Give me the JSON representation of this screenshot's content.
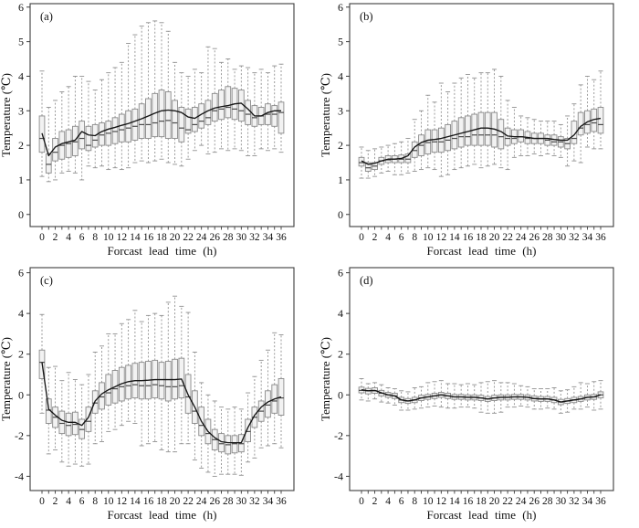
{
  "figure": {
    "title": "",
    "colors": {
      "background": "#ffffff",
      "axis": "#3c3c3c",
      "tick_text": "#111111",
      "box_fill": "#f2f2f2",
      "box_stroke": "#8a8a8a",
      "whisker": "#909090",
      "median": "#4a4a4a",
      "mean_line": "#151515"
    }
  },
  "chart_data": [
    {
      "type": "boxplot",
      "panel_label": "(a)",
      "xlabel": "Forcast lead time (h)",
      "ylabel": "Temperature (℃)",
      "x": [
        0,
        1,
        2,
        3,
        4,
        5,
        6,
        7,
        8,
        9,
        10,
        11,
        12,
        13,
        14,
        15,
        16,
        17,
        18,
        19,
        20,
        21,
        22,
        23,
        24,
        25,
        26,
        27,
        28,
        29,
        30,
        31,
        32,
        33,
        34,
        35,
        36
      ],
      "xtick_label_step": 2,
      "ylim": [
        -0.35,
        6.1
      ],
      "yticks": [
        0,
        1,
        2,
        3,
        4,
        5,
        6
      ],
      "grid": false,
      "series": {
        "low": [
          1.1,
          0.95,
          1.0,
          1.2,
          1.25,
          1.2,
          1.0,
          1.4,
          1.35,
          1.4,
          1.3,
          1.35,
          1.3,
          1.35,
          1.5,
          1.55,
          1.5,
          1.55,
          1.6,
          1.5,
          1.45,
          1.4,
          1.6,
          1.85,
          2.0,
          1.75,
          1.8,
          1.9,
          1.85,
          1.9,
          1.85,
          1.7,
          1.7,
          1.9,
          1.85,
          1.9,
          1.8
        ],
        "q1": [
          1.8,
          1.2,
          1.55,
          1.6,
          1.65,
          1.7,
          1.9,
          1.85,
          1.95,
          2.0,
          2.0,
          2.05,
          2.1,
          2.1,
          2.15,
          2.2,
          2.2,
          2.25,
          2.25,
          2.2,
          2.2,
          2.1,
          2.35,
          2.4,
          2.5,
          2.6,
          2.7,
          2.75,
          2.8,
          2.75,
          2.7,
          2.6,
          2.55,
          2.6,
          2.6,
          2.55,
          2.35
        ],
        "median": [
          2.2,
          1.45,
          1.8,
          2.0,
          2.05,
          2.1,
          2.2,
          2.0,
          2.15,
          2.3,
          2.35,
          2.4,
          2.45,
          2.5,
          2.55,
          2.6,
          2.6,
          2.65,
          2.7,
          2.72,
          2.65,
          2.5,
          2.45,
          2.6,
          2.7,
          2.8,
          3.0,
          3.05,
          3.1,
          3.05,
          3.0,
          2.9,
          2.8,
          2.85,
          2.9,
          2.9,
          2.95
        ],
        "q3": [
          2.85,
          1.75,
          2.2,
          2.4,
          2.45,
          2.55,
          2.7,
          2.55,
          2.6,
          2.65,
          2.7,
          2.8,
          2.9,
          3.0,
          3.05,
          3.2,
          3.35,
          3.5,
          3.6,
          3.55,
          3.3,
          3.1,
          3.05,
          3.1,
          3.2,
          3.3,
          3.5,
          3.6,
          3.7,
          3.65,
          3.6,
          3.3,
          3.15,
          3.1,
          3.2,
          3.15,
          3.25
        ],
        "high": [
          4.15,
          3.1,
          3.3,
          3.55,
          3.7,
          4.0,
          4.0,
          3.85,
          3.6,
          3.9,
          4.1,
          4.25,
          4.4,
          4.95,
          5.2,
          5.45,
          5.55,
          5.6,
          5.55,
          5.3,
          4.4,
          4.1,
          4.0,
          4.2,
          4.1,
          4.85,
          4.8,
          4.4,
          4.5,
          4.2,
          4.3,
          4.25,
          4.1,
          4.2,
          4.1,
          4.3,
          4.35
        ],
        "mean": [
          2.35,
          1.7,
          1.95,
          2.05,
          2.1,
          2.15,
          2.4,
          2.3,
          2.28,
          2.4,
          2.47,
          2.52,
          2.58,
          2.63,
          2.7,
          2.77,
          2.85,
          2.93,
          3.0,
          3.02,
          3.0,
          2.95,
          2.82,
          2.78,
          2.9,
          3.0,
          3.08,
          3.12,
          3.15,
          3.2,
          3.22,
          3.05,
          2.85,
          2.85,
          2.95,
          3.0,
          3.0
        ]
      }
    },
    {
      "type": "boxplot",
      "panel_label": "(b)",
      "xlabel": "Forcast lead time (h)",
      "ylabel": "Temperature (℃)",
      "x": [
        0,
        1,
        2,
        3,
        4,
        5,
        6,
        7,
        8,
        9,
        10,
        11,
        12,
        13,
        14,
        15,
        16,
        17,
        18,
        19,
        20,
        21,
        22,
        23,
        24,
        25,
        26,
        27,
        28,
        29,
        30,
        31,
        32,
        33,
        34,
        35,
        36
      ],
      "xtick_label_step": 2,
      "ylim": [
        -0.35,
        6.1
      ],
      "yticks": [
        0,
        1,
        2,
        3,
        4,
        5,
        6
      ],
      "grid": false,
      "series": {
        "low": [
          1.05,
          1.05,
          1.1,
          1.2,
          1.25,
          1.15,
          1.15,
          1.2,
          1.25,
          1.3,
          1.35,
          1.3,
          1.1,
          1.15,
          1.3,
          1.35,
          1.4,
          1.45,
          1.35,
          1.4,
          1.45,
          1.35,
          1.3,
          1.65,
          1.7,
          1.7,
          1.75,
          1.7,
          1.75,
          1.7,
          1.65,
          1.4,
          1.55,
          1.5,
          1.95,
          1.9,
          1.9
        ],
        "q1": [
          1.4,
          1.25,
          1.3,
          1.45,
          1.5,
          1.5,
          1.5,
          1.5,
          1.65,
          1.7,
          1.75,
          1.8,
          1.8,
          1.85,
          1.9,
          1.95,
          2.0,
          2.0,
          2.0,
          2.0,
          1.95,
          1.9,
          2.0,
          2.05,
          2.1,
          2.05,
          2.05,
          2.05,
          2.0,
          2.0,
          1.95,
          1.9,
          2.05,
          2.3,
          2.35,
          2.4,
          2.35
        ],
        "median": [
          1.5,
          1.35,
          1.4,
          1.55,
          1.58,
          1.6,
          1.6,
          1.6,
          1.85,
          2.0,
          2.08,
          2.1,
          2.1,
          2.15,
          2.2,
          2.25,
          2.25,
          2.3,
          2.3,
          2.3,
          2.3,
          2.25,
          2.2,
          2.2,
          2.25,
          2.2,
          2.2,
          2.2,
          2.15,
          2.1,
          2.1,
          2.05,
          2.2,
          2.5,
          2.6,
          2.65,
          2.6
        ],
        "q3": [
          1.65,
          1.5,
          1.5,
          1.65,
          1.7,
          1.7,
          1.72,
          1.75,
          2.1,
          2.3,
          2.45,
          2.45,
          2.5,
          2.6,
          2.7,
          2.8,
          2.85,
          2.9,
          2.95,
          2.95,
          2.95,
          2.75,
          2.5,
          2.45,
          2.45,
          2.4,
          2.35,
          2.35,
          2.3,
          2.3,
          2.25,
          2.2,
          2.7,
          2.95,
          3.0,
          3.05,
          3.1
        ],
        "high": [
          1.95,
          1.85,
          1.9,
          1.95,
          2.0,
          2.05,
          2.1,
          2.2,
          2.75,
          3.0,
          3.45,
          3.25,
          3.8,
          3.55,
          3.8,
          3.95,
          4.05,
          3.95,
          4.1,
          4.1,
          4.2,
          4.0,
          3.3,
          3.1,
          2.85,
          2.8,
          2.75,
          2.7,
          2.7,
          2.7,
          2.6,
          2.85,
          3.2,
          3.75,
          4.0,
          3.9,
          4.15
        ],
        "mean": [
          1.55,
          1.45,
          1.48,
          1.55,
          1.6,
          1.6,
          1.62,
          1.7,
          1.95,
          2.08,
          2.15,
          2.17,
          2.2,
          2.25,
          2.3,
          2.35,
          2.4,
          2.45,
          2.5,
          2.5,
          2.47,
          2.4,
          2.27,
          2.25,
          2.25,
          2.23,
          2.2,
          2.2,
          2.2,
          2.17,
          2.15,
          2.15,
          2.3,
          2.55,
          2.68,
          2.75,
          2.78
        ]
      }
    },
    {
      "type": "boxplot",
      "panel_label": "(c)",
      "xlabel": "Forcast lead time (h)",
      "ylabel": "Temperature (℃)",
      "x": [
        0,
        1,
        2,
        3,
        4,
        5,
        6,
        7,
        8,
        9,
        10,
        11,
        12,
        13,
        14,
        15,
        16,
        17,
        18,
        19,
        20,
        21,
        22,
        23,
        24,
        25,
        26,
        27,
        28,
        29,
        30,
        31,
        32,
        33,
        34,
        35,
        36
      ],
      "xtick_label_step": 2,
      "ylim": [
        -4.7,
        6.25
      ],
      "yticks": [
        -4,
        -2,
        0,
        2,
        4,
        6
      ],
      "grid": false,
      "series": {
        "low": [
          -0.9,
          -2.9,
          -2.7,
          -3.3,
          -3.5,
          -3.4,
          -3.5,
          -3.4,
          -2.4,
          -2.3,
          -1.8,
          -1.7,
          -1.5,
          -1.3,
          -1.4,
          -2.5,
          -2.4,
          -2.3,
          -2.7,
          -2.8,
          -2.8,
          -2.4,
          -2.4,
          -3.2,
          -3.6,
          -3.8,
          -4.0,
          -3.9,
          -3.9,
          -3.9,
          -3.95,
          -3.3,
          -3.1,
          -2.6,
          -2.5,
          -2.4,
          -2.6
        ],
        "q1": [
          0.8,
          -1.4,
          -1.6,
          -1.9,
          -2.0,
          -1.95,
          -2.15,
          -1.8,
          -0.9,
          -0.7,
          -0.5,
          -0.4,
          -0.3,
          -0.2,
          -0.15,
          -0.2,
          -0.2,
          -0.15,
          -0.2,
          -0.3,
          -0.2,
          -0.15,
          -0.9,
          -1.4,
          -2.0,
          -2.4,
          -2.7,
          -2.8,
          -2.9,
          -2.85,
          -2.8,
          -2.3,
          -1.6,
          -1.3,
          -1.1,
          -0.9,
          -1.0
        ],
        "median": [
          1.6,
          -0.75,
          -1.1,
          -1.4,
          -1.5,
          -1.45,
          -1.7,
          -1.3,
          -0.4,
          -0.1,
          0.1,
          0.3,
          0.4,
          0.45,
          0.5,
          0.45,
          0.45,
          0.5,
          0.45,
          0.4,
          0.4,
          0.45,
          -0.1,
          -0.8,
          -1.5,
          -1.9,
          -2.2,
          -2.4,
          -2.45,
          -2.4,
          -2.4,
          -1.8,
          -1.1,
          -0.8,
          -0.5,
          -0.3,
          -0.15
        ],
        "q3": [
          2.2,
          -0.2,
          -0.6,
          -0.8,
          -0.9,
          -0.85,
          -1.2,
          -0.6,
          0.2,
          0.6,
          1.0,
          1.2,
          1.35,
          1.45,
          1.55,
          1.6,
          1.65,
          1.7,
          1.6,
          1.65,
          1.75,
          1.8,
          1.0,
          0.2,
          -0.6,
          -1.2,
          -1.7,
          -1.9,
          -2.0,
          -2.0,
          -1.95,
          -1.2,
          -0.6,
          -0.3,
          0.2,
          0.5,
          0.8
        ],
        "high": [
          3.95,
          1.35,
          1.4,
          0.7,
          1.1,
          0.75,
          0.5,
          1.0,
          2.1,
          2.4,
          3.0,
          3.0,
          3.5,
          3.7,
          4.15,
          3.6,
          3.9,
          4.0,
          3.9,
          4.55,
          4.85,
          4.35,
          4.05,
          2.1,
          0.6,
          0.0,
          -0.3,
          -0.6,
          -0.7,
          -0.6,
          -0.7,
          0.1,
          0.9,
          1.7,
          2.2,
          3.05,
          2.95
        ],
        "mean": [
          1.6,
          -0.7,
          -1.0,
          -1.25,
          -1.35,
          -1.35,
          -1.5,
          -1.1,
          -0.3,
          0.05,
          0.25,
          0.4,
          0.55,
          0.65,
          0.7,
          0.7,
          0.72,
          0.75,
          0.75,
          0.75,
          0.75,
          0.78,
          0.0,
          -0.6,
          -1.3,
          -1.8,
          -2.1,
          -2.3,
          -2.35,
          -2.35,
          -2.35,
          -1.6,
          -1.0,
          -0.6,
          -0.35,
          -0.2,
          -0.1
        ]
      }
    },
    {
      "type": "boxplot",
      "panel_label": "(d)",
      "xlabel": "Forcast lead time (h)",
      "ylabel": "Temperature (℃)",
      "x": [
        0,
        1,
        2,
        3,
        4,
        5,
        6,
        7,
        8,
        9,
        10,
        11,
        12,
        13,
        14,
        15,
        16,
        17,
        18,
        19,
        20,
        21,
        22,
        23,
        24,
        25,
        26,
        27,
        28,
        29,
        30,
        31,
        32,
        33,
        34,
        35,
        36
      ],
      "xtick_label_step": 2,
      "ylim": [
        -4.7,
        6.25
      ],
      "yticks": [
        -4,
        -2,
        0,
        2,
        4,
        6
      ],
      "grid": false,
      "series": {
        "low": [
          -0.25,
          -0.3,
          -0.2,
          -0.35,
          -0.4,
          -0.5,
          -0.75,
          -0.75,
          -0.7,
          -0.65,
          -0.6,
          -0.55,
          -0.6,
          -0.65,
          -0.65,
          -0.6,
          -0.6,
          -0.65,
          -0.85,
          -0.9,
          -0.9,
          -0.85,
          -0.6,
          -0.6,
          -0.55,
          -0.6,
          -0.7,
          -0.7,
          -0.65,
          -0.7,
          -0.9,
          -0.85,
          -0.7,
          -0.7,
          -0.6,
          -0.75,
          -0.7
        ],
        "q1": [
          0.1,
          0.05,
          0.08,
          -0.05,
          -0.12,
          -0.18,
          -0.38,
          -0.42,
          -0.38,
          -0.28,
          -0.22,
          -0.18,
          -0.12,
          -0.18,
          -0.22,
          -0.22,
          -0.25,
          -0.25,
          -0.28,
          -0.32,
          -0.28,
          -0.25,
          -0.25,
          -0.22,
          -0.22,
          -0.25,
          -0.3,
          -0.32,
          -0.32,
          -0.38,
          -0.48,
          -0.42,
          -0.38,
          -0.32,
          -0.25,
          -0.22,
          -0.15
        ],
        "median": [
          0.22,
          0.2,
          0.2,
          0.08,
          0.0,
          -0.05,
          -0.25,
          -0.3,
          -0.25,
          -0.15,
          -0.1,
          -0.05,
          0.0,
          -0.05,
          -0.1,
          -0.1,
          -0.12,
          -0.12,
          -0.15,
          -0.2,
          -0.15,
          -0.12,
          -0.12,
          -0.1,
          -0.1,
          -0.12,
          -0.18,
          -0.2,
          -0.2,
          -0.25,
          -0.35,
          -0.3,
          -0.25,
          -0.2,
          -0.12,
          -0.1,
          0.0
        ],
        "q3": [
          0.38,
          0.32,
          0.35,
          0.22,
          0.12,
          0.08,
          -0.12,
          -0.18,
          -0.12,
          -0.02,
          0.02,
          0.08,
          0.12,
          0.08,
          0.02,
          0.02,
          0.0,
          0.0,
          -0.02,
          -0.08,
          -0.02,
          0.0,
          0.0,
          0.02,
          0.02,
          0.0,
          -0.05,
          -0.08,
          -0.08,
          -0.12,
          -0.22,
          -0.18,
          -0.12,
          -0.08,
          0.0,
          0.02,
          0.15
        ],
        "high": [
          0.8,
          0.55,
          0.6,
          0.5,
          0.35,
          0.3,
          0.2,
          0.15,
          0.35,
          0.4,
          0.6,
          0.65,
          0.7,
          0.55,
          0.55,
          0.5,
          0.55,
          0.5,
          0.6,
          0.65,
          0.7,
          0.6,
          0.6,
          0.55,
          0.45,
          0.4,
          0.3,
          0.3,
          0.3,
          0.35,
          0.2,
          0.25,
          0.4,
          0.6,
          0.55,
          0.65,
          0.7
        ],
        "mean": [
          0.25,
          0.2,
          0.22,
          0.1,
          0.0,
          -0.05,
          -0.25,
          -0.3,
          -0.25,
          -0.15,
          -0.1,
          -0.05,
          0.0,
          -0.05,
          -0.1,
          -0.1,
          -0.12,
          -0.12,
          -0.15,
          -0.2,
          -0.15,
          -0.12,
          -0.12,
          -0.1,
          -0.1,
          -0.12,
          -0.18,
          -0.2,
          -0.2,
          -0.25,
          -0.35,
          -0.3,
          -0.25,
          -0.2,
          -0.12,
          -0.1,
          0.0
        ]
      }
    }
  ]
}
